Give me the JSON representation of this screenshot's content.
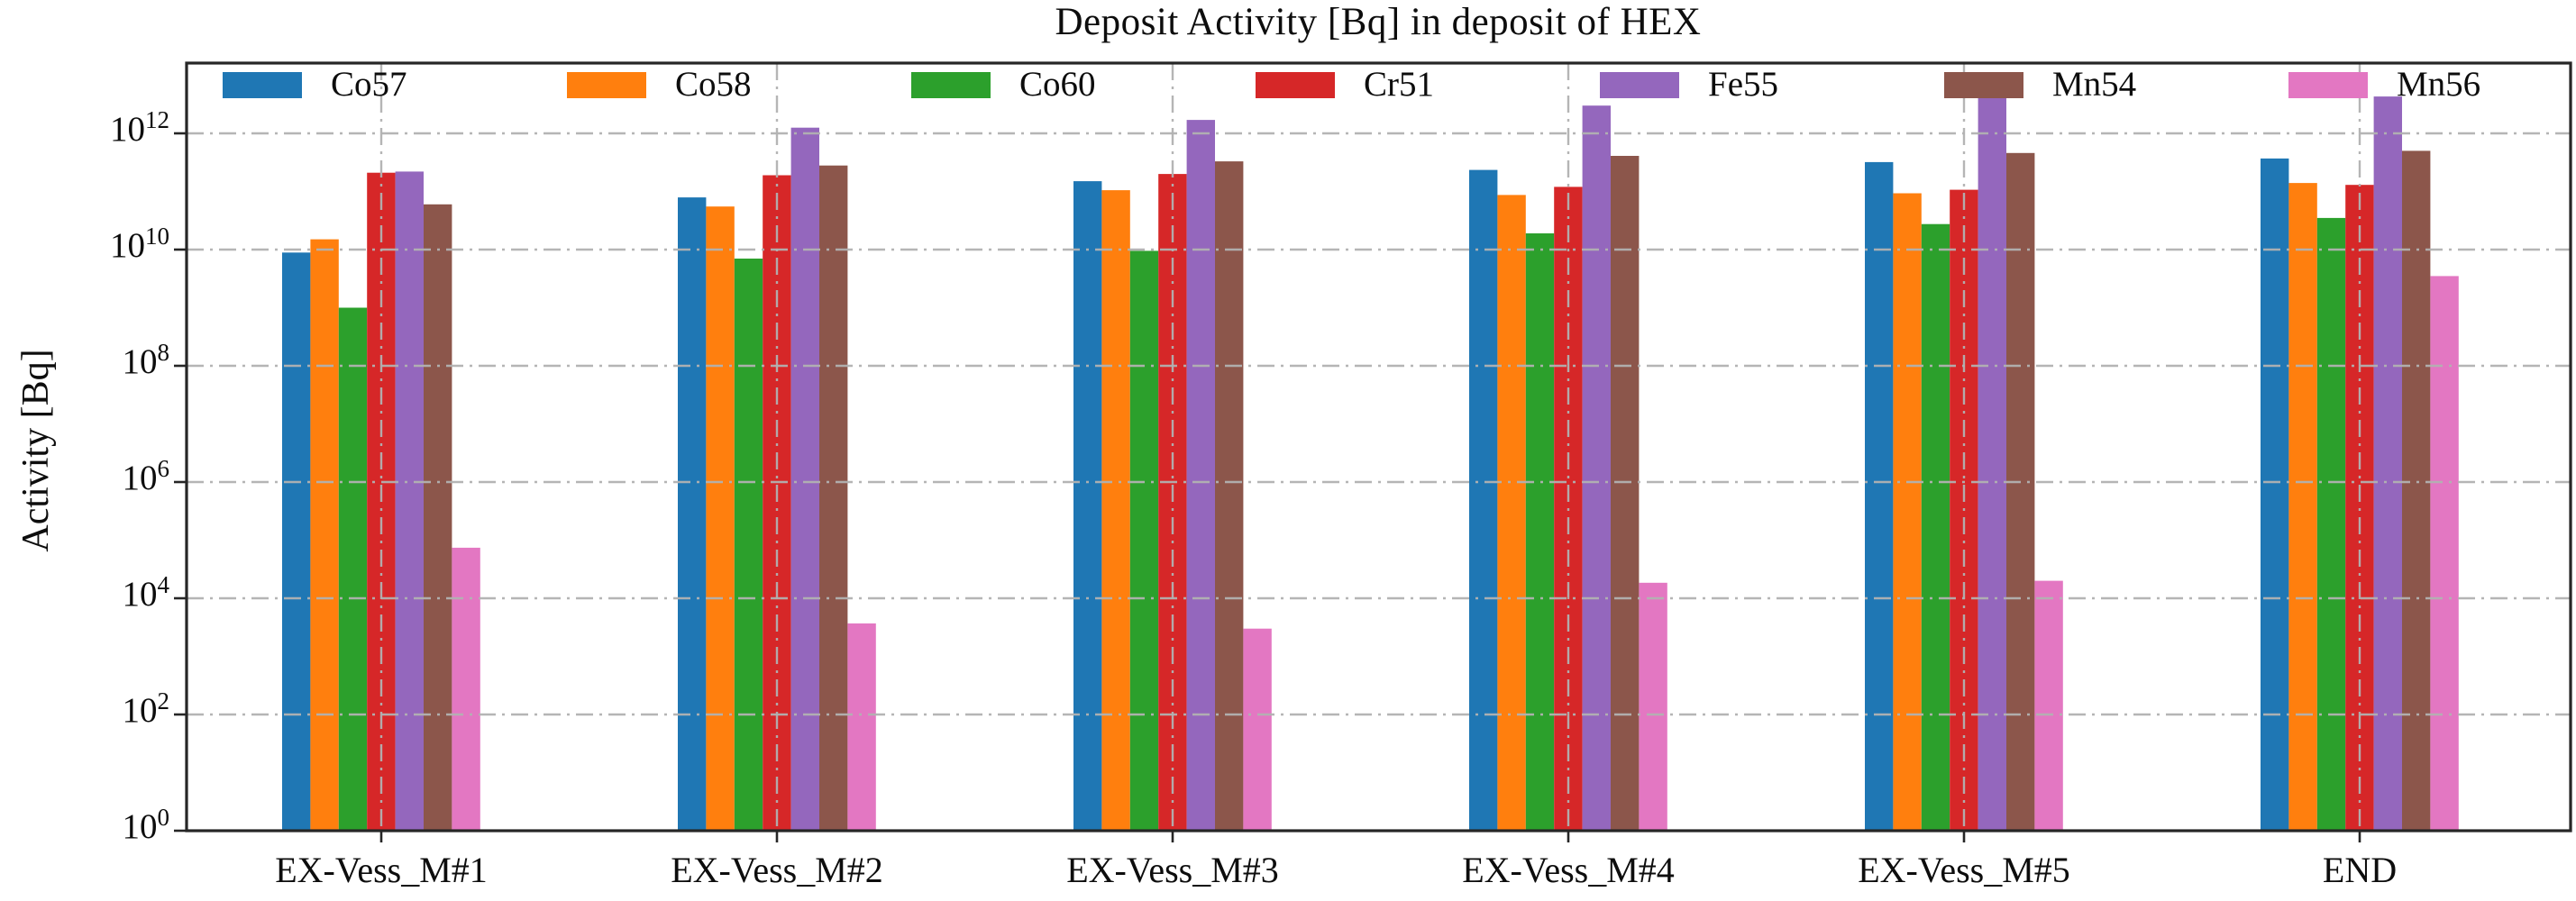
{
  "chart_data": {
    "type": "bar",
    "title": "Deposit Activity [Bq] in deposit of HEX",
    "ylabel": "Activity [Bq]",
    "xlabel": "",
    "yscale": "log",
    "ylim": [
      1,
      20000000000000.0
    ],
    "ytick_exponents": [
      0,
      2,
      4,
      6,
      8,
      10,
      12
    ],
    "grid": {
      "style": "dash-dot",
      "color": "#b2b2b2",
      "over_bars": true
    },
    "legend_position": "top-row-inside-axes",
    "frame_color": "#262626",
    "categories": [
      "EX-Vess_M#1",
      "EX-Vess_M#2",
      "EX-Vess_M#3",
      "EX-Vess_M#4",
      "EX-Vess_M#5",
      "END"
    ],
    "series": [
      {
        "name": "Co57",
        "color": "#1f77b4",
        "values": [
          8900000000.0,
          79000000000.0,
          150000000000.0,
          235000000000.0,
          320000000000.0,
          370000000000.0
        ]
      },
      {
        "name": "Co58",
        "color": "#ff7f0e",
        "values": [
          15000000000.0,
          55000000000.0,
          105000000000.0,
          87000000000.0,
          93000000000.0,
          140000000000.0
        ]
      },
      {
        "name": "Co60",
        "color": "#2ca02c",
        "values": [
          1000000000.0,
          7000000000.0,
          9500000000.0,
          19000000000.0,
          27500000000.0,
          35000000000.0
        ]
      },
      {
        "name": "Cr51",
        "color": "#d62728",
        "values": [
          210000000000.0,
          190000000000.0,
          200000000000.0,
          120000000000.0,
          107000000000.0,
          130000000000.0
        ]
      },
      {
        "name": "Fe55",
        "color": "#9467bd",
        "values": [
          220000000000.0,
          1250000000000.0,
          1700000000000.0,
          3000000000000.0,
          7900000000000.0,
          4300000000000.0
        ]
      },
      {
        "name": "Mn54",
        "color": "#8c564b",
        "values": [
          60000000000.0,
          280000000000.0,
          330000000000.0,
          410000000000.0,
          460000000000.0,
          500000000000.0
        ]
      },
      {
        "name": "Mn56",
        "color": "#e377c2",
        "values": [
          74000.0,
          3700.0,
          3000.0,
          18500.0,
          20000.0,
          3500000000.0
        ]
      }
    ]
  }
}
